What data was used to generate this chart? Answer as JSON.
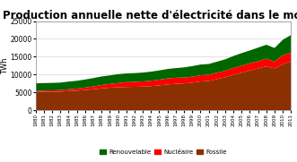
{
  "title": "Production annuelle nette d'électricité dans le monde",
  "ylabel": "TWh",
  "years": [
    1980,
    1981,
    1982,
    1983,
    1984,
    1985,
    1986,
    1987,
    1988,
    1989,
    1990,
    1991,
    1992,
    1993,
    1994,
    1995,
    1996,
    1997,
    1998,
    1999,
    2000,
    2001,
    2002,
    2003,
    2004,
    2005,
    2006,
    2007,
    2008,
    2009,
    2010,
    2011
  ],
  "fossile": [
    5100,
    5150,
    5150,
    5200,
    5350,
    5450,
    5650,
    5850,
    6100,
    6300,
    6400,
    6500,
    6550,
    6600,
    6750,
    6950,
    7200,
    7400,
    7500,
    7700,
    8050,
    8200,
    8700,
    9200,
    9900,
    10500,
    11100,
    11700,
    12300,
    11700,
    12900,
    13700
  ],
  "nucleaire": [
    250,
    350,
    400,
    430,
    520,
    600,
    700,
    800,
    950,
    1050,
    1200,
    1350,
    1400,
    1450,
    1500,
    1600,
    1700,
    1700,
    1650,
    1700,
    1750,
    1750,
    1800,
    1850,
    1950,
    2000,
    2050,
    2050,
    2150,
    1950,
    2550,
    2400
  ],
  "renouvelable": [
    2200,
    2100,
    2100,
    2100,
    2150,
    2200,
    2250,
    2350,
    2400,
    2400,
    2500,
    2450,
    2450,
    2500,
    2550,
    2600,
    2650,
    2700,
    2850,
    2950,
    3000,
    3000,
    3100,
    3200,
    3350,
    3500,
    3600,
    3800,
    3900,
    3800,
    4300,
    5000
  ],
  "color_fossile": "#8B3000",
  "color_nucleaire": "#FF0000",
  "color_renouvelable": "#006600",
  "ylim": [
    0,
    25000
  ],
  "yticks": [
    0,
    5000,
    10000,
    15000,
    20000,
    25000
  ],
  "legend_labels": [
    "Renouvelable",
    "Nucléaire",
    "Fossile"
  ],
  "background_color": "#FFFFFF",
  "title_fontsize": 8.5
}
